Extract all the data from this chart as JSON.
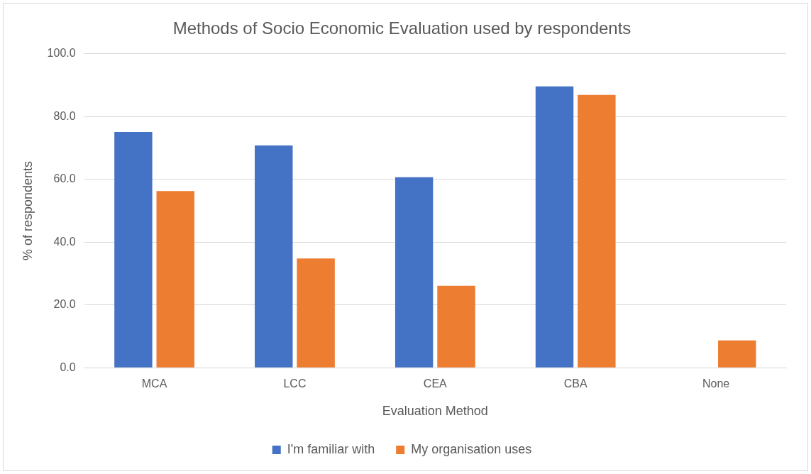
{
  "chart_data": {
    "type": "bar",
    "title": "Methods of Socio Economic Evaluation used by respondents",
    "xlabel": "Evaluation Method",
    "ylabel": "% of respondents",
    "categories": [
      "MCA",
      "LCC",
      "CEA",
      "CBA",
      "None"
    ],
    "series": [
      {
        "name": "I'm familiar with",
        "color": "#4472c4",
        "values": [
          75.1,
          70.8,
          60.7,
          89.6,
          0
        ]
      },
      {
        "name": "My organisation uses",
        "color": "#ed7d31",
        "values": [
          56.3,
          34.8,
          26.1,
          86.9,
          8.7
        ]
      }
    ],
    "ylim": [
      0,
      100
    ],
    "yticks": [
      {
        "value": 0,
        "label": "0.0"
      },
      {
        "value": 20,
        "label": "20.0"
      },
      {
        "value": 40,
        "label": "40.0"
      },
      {
        "value": 60,
        "label": "60.0"
      },
      {
        "value": 80,
        "label": "80.0"
      },
      {
        "value": 100,
        "label": "100.0"
      }
    ],
    "grid": "y",
    "legend": "bottom"
  }
}
